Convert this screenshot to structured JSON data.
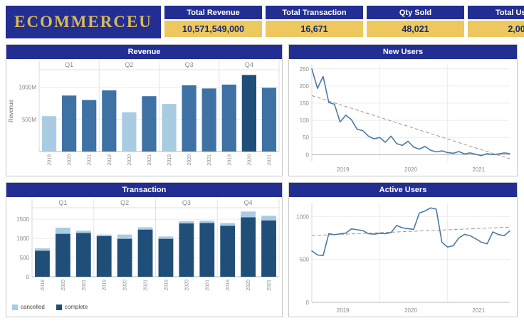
{
  "brand": {
    "logo_text": "ECOMMERCEU"
  },
  "kpis": [
    {
      "label": "Total Revenue",
      "value": "10,571,549,000"
    },
    {
      "label": "Total Transaction",
      "value": "16,671"
    },
    {
      "label": "Qty Sold",
      "value": "48,021"
    },
    {
      "label": "Total Users",
      "value": "2,00"
    }
  ],
  "colors": {
    "navy": "#232e93",
    "gold": "#ecc85f",
    "light": "#a9cce3",
    "mid": "#3f72a4",
    "dark": "#1f4e79",
    "line": "#4a7aa8",
    "trend": "#999999"
  },
  "chart_data": [
    {
      "type": "grouped_bar",
      "title": "Revenue",
      "ylabel": "Revenue",
      "ymax": 1260,
      "yticks": [
        {
          "v": 500,
          "label": "500M"
        },
        {
          "v": 1000,
          "label": "1000M"
        }
      ],
      "groups": [
        {
          "label": "Q1",
          "bars": [
            {
              "year": "2019",
              "value": 550,
              "color": "light"
            },
            {
              "year": "2020",
              "value": 870,
              "color": "mid"
            },
            {
              "year": "2021",
              "value": 800,
              "color": "mid"
            }
          ]
        },
        {
          "label": "Q2",
          "bars": [
            {
              "year": "2019",
              "value": 950,
              "color": "mid"
            },
            {
              "year": "2020",
              "value": 610,
              "color": "light"
            },
            {
              "year": "2021",
              "value": 860,
              "color": "mid"
            }
          ]
        },
        {
          "label": "Q3",
          "bars": [
            {
              "year": "2019",
              "value": 740,
              "color": "light"
            },
            {
              "year": "2020",
              "value": 1030,
              "color": "mid"
            },
            {
              "year": "2021",
              "value": 980,
              "color": "mid"
            }
          ]
        },
        {
          "label": "Q4",
          "bars": [
            {
              "year": "2019",
              "value": 1040,
              "color": "mid"
            },
            {
              "year": "2020",
              "value": 1190,
              "color": "dark"
            },
            {
              "year": "2021",
              "value": 990,
              "color": "mid"
            }
          ]
        }
      ]
    },
    {
      "type": "line",
      "title": "New Users",
      "ymin": -20,
      "ymax": 262,
      "yticks": [
        {
          "v": 0,
          "label": "0"
        },
        {
          "v": 50,
          "label": "50"
        },
        {
          "v": 100,
          "label": "100"
        },
        {
          "v": 150,
          "label": "150"
        },
        {
          "v": 200,
          "label": "200"
        },
        {
          "v": 250,
          "label": "250"
        }
      ],
      "xticks": [
        "2019",
        "2020",
        "2021"
      ],
      "values": [
        250,
        193,
        228,
        152,
        147,
        95,
        115,
        102,
        74,
        70,
        54,
        46,
        50,
        36,
        54,
        32,
        27,
        39,
        22,
        16,
        24,
        13,
        8,
        11,
        6,
        4,
        9,
        2,
        5,
        1,
        -3,
        3,
        0,
        2,
        5,
        3
      ],
      "trend": {
        "start": 172,
        "end": -12
      }
    },
    {
      "type": "stacked_bar",
      "title": "Transaction",
      "ymax": 1780,
      "yticks": [
        {
          "v": 0,
          "label": "0"
        },
        {
          "v": 500,
          "label": "500"
        },
        {
          "v": 1000,
          "label": "1000"
        },
        {
          "v": 1500,
          "label": "1500"
        }
      ],
      "legend": [
        {
          "label": "cancelled",
          "color": "light"
        },
        {
          "label": "complete",
          "color": "dark"
        }
      ],
      "groups": [
        {
          "label": "Q1",
          "bars": [
            {
              "year": "2019",
              "complete": 680,
              "cancelled": 60
            },
            {
              "year": "2020",
              "complete": 1120,
              "cancelled": 160
            },
            {
              "year": "2021",
              "complete": 1140,
              "cancelled": 60
            }
          ]
        },
        {
          "label": "Q2",
          "bars": [
            {
              "year": "2019",
              "complete": 1060,
              "cancelled": 40
            },
            {
              "year": "2020",
              "complete": 990,
              "cancelled": 110
            },
            {
              "year": "2021",
              "complete": 1230,
              "cancelled": 60
            }
          ]
        },
        {
          "label": "Q3",
          "bars": [
            {
              "year": "2019",
              "complete": 990,
              "cancelled": 60
            },
            {
              "year": "2020",
              "complete": 1390,
              "cancelled": 60
            },
            {
              "year": "2021",
              "complete": 1400,
              "cancelled": 60
            }
          ]
        },
        {
          "label": "Q4",
          "bars": [
            {
              "year": "2019",
              "complete": 1330,
              "cancelled": 70
            },
            {
              "year": "2020",
              "complete": 1550,
              "cancelled": 150
            },
            {
              "year": "2021",
              "complete": 1470,
              "cancelled": 120
            }
          ]
        }
      ]
    },
    {
      "type": "line",
      "title": "Active Users",
      "ymin": 0,
      "ymax": 1160,
      "yticks": [
        {
          "v": 0,
          "label": "0"
        },
        {
          "v": 500,
          "label": "500"
        },
        {
          "v": 1000,
          "label": "1000"
        }
      ],
      "xticks": [
        "2019",
        "2020",
        "2021"
      ],
      "values": [
        600,
        552,
        545,
        800,
        788,
        798,
        806,
        856,
        846,
        836,
        800,
        794,
        804,
        800,
        812,
        896,
        868,
        858,
        850,
        1040,
        1064,
        1100,
        1086,
        700,
        644,
        660,
        750,
        792,
        776,
        740,
        700,
        682,
        820,
        790,
        776,
        832
      ],
      "trend": {
        "start": 778,
        "end": 876
      }
    }
  ]
}
